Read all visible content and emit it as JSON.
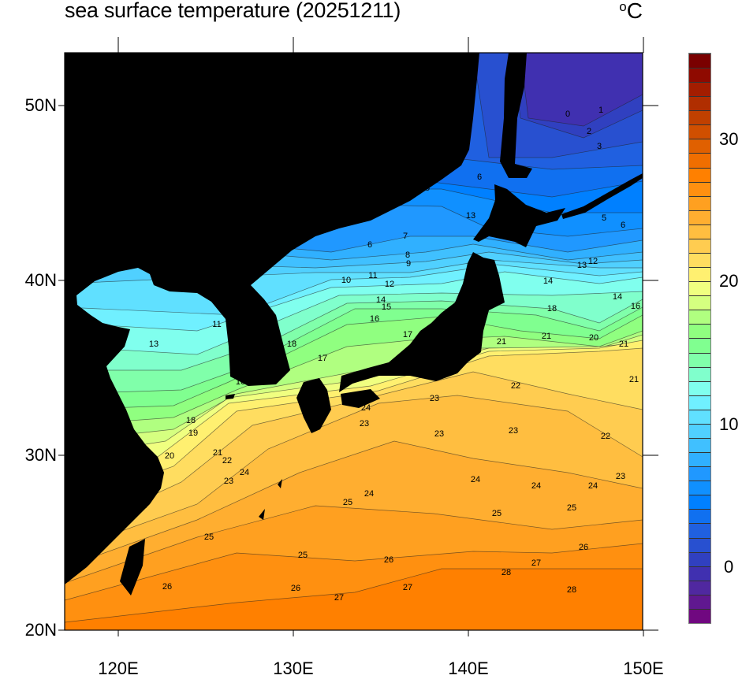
{
  "title": "sea surface temperature (20251211)",
  "units": {
    "degree": "o",
    "letter": "C"
  },
  "axes": {
    "x_labels": [
      "120E",
      "130E",
      "140E",
      "150E"
    ],
    "y_labels": [
      "50N",
      "40N",
      "30N",
      "20N"
    ],
    "lon_range": [
      117,
      150
    ],
    "lat_range": [
      20,
      53
    ]
  },
  "colorbar": {
    "min": -4,
    "max": 36,
    "step": 1,
    "labels": [
      "0",
      "10",
      "20",
      "30"
    ],
    "colors": [
      "#700880",
      "#601890",
      "#5028a0",
      "#4030b0",
      "#3040c0",
      "#2850d0",
      "#2060e0",
      "#1070f0",
      "#0080ff",
      "#1090ff",
      "#2098ff",
      "#30b0ff",
      "#40c0ff",
      "#50d0ff",
      "#60e0ff",
      "#70f0ff",
      "#80ffee",
      "#80ffcc",
      "#80ffaa",
      "#80ff90",
      "#90ff80",
      "#b0ff80",
      "#d5ff80",
      "#f0ff80",
      "#fff070",
      "#ffdd60",
      "#ffcc50",
      "#ffbe40",
      "#ffae30",
      "#ffa020",
      "#ff9010",
      "#ff8000",
      "#f06e00",
      "#e06000",
      "#d04f00",
      "#c04000",
      "#b02e00",
      "#a31d00",
      "#8f0a00",
      "#7a0000"
    ]
  },
  "map": {
    "land_color": "#000000",
    "contour_labels": [
      "0",
      "1",
      "2",
      "3",
      "5",
      "6",
      "6",
      "7",
      "8",
      "9",
      "10",
      "11",
      "12",
      "13",
      "12",
      "14",
      "15",
      "16",
      "17",
      "17",
      "18",
      "13",
      "11",
      "18",
      "19",
      "16",
      "21",
      "22",
      "23",
      "24",
      "20",
      "21",
      "25",
      "26",
      "26",
      "27",
      "27",
      "26",
      "25",
      "24",
      "25",
      "23",
      "24",
      "23",
      "23",
      "23",
      "22",
      "23",
      "24",
      "24",
      "24",
      "25",
      "25",
      "26",
      "27",
      "28",
      "28",
      "21",
      "21",
      "21",
      "22",
      "21",
      "20",
      "14",
      "16",
      "5",
      "6",
      "13",
      "18",
      "14"
    ]
  }
}
